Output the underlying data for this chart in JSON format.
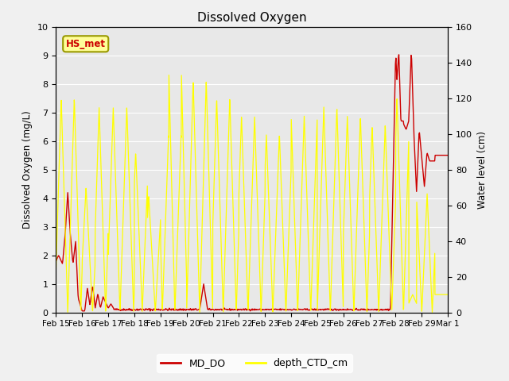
{
  "title": "Dissolved Oxygen",
  "ylabel_left": "Dissolved Oxygen (mg/L)",
  "ylabel_right": "Water level (cm)",
  "ylim_left": [
    0,
    10.0
  ],
  "ylim_right": [
    0,
    160
  ],
  "yticks_left": [
    0.0,
    1.0,
    2.0,
    3.0,
    4.0,
    5.0,
    6.0,
    7.0,
    8.0,
    9.0,
    10.0
  ],
  "yticks_right": [
    0,
    20,
    40,
    60,
    80,
    100,
    120,
    140,
    160
  ],
  "background_color": "#f0f0f0",
  "plot_bg_color": "#e8e8e8",
  "annotation_text": "HS_met",
  "annotation_color": "#cc0000",
  "annotation_bg": "#ffff99",
  "annotation_border": "#999900",
  "line_DO_color": "#cc0000",
  "line_depth_color": "#ffff00",
  "legend_DO_label": "MD_DO",
  "legend_depth_label": "depth_CTD_cm",
  "x_tick_labels": [
    "Feb 15",
    "Feb 16",
    "Feb 17",
    "Feb 18",
    "Feb 19",
    "Feb 20",
    "Feb 21",
    "Feb 22",
    "Feb 23",
    "Feb 24",
    "Feb 25",
    "Feb 26",
    "Feb 27",
    "Feb 28",
    "Feb 29",
    "Mar 1"
  ],
  "n_days": 15.0,
  "figsize": [
    6.4,
    4.8
  ],
  "dpi": 100
}
